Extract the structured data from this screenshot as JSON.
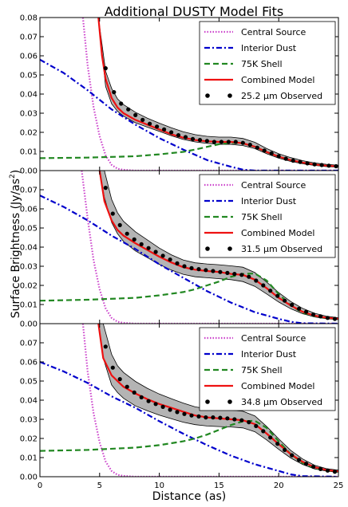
{
  "title": "Additional DUSTY Model Fits",
  "xlabel": "Distance (as)",
  "ylabel": "Surface Brightness (Jy/as",
  "ylabel_sup": "2",
  "ylabel_close": ")",
  "legend_labels": {
    "central": "Central Source",
    "interior": "Interior Dust",
    "shell": "75K Shell",
    "combined": "Combined Model"
  },
  "colors": {
    "central": "#cc44cc",
    "interior": "#0000cc",
    "shell": "#228822",
    "combined": "#ee1111",
    "observed": "#000000",
    "band": "#b4b4b4"
  },
  "chart_data": [
    {
      "type": "line",
      "legend_position": "top-right",
      "observed_label": "25.2 μm Observed",
      "xlim": [
        0,
        25
      ],
      "ylim": [
        0,
        0.08
      ],
      "x_ticks": [
        "0",
        "5",
        "10",
        "15",
        "20",
        "25"
      ],
      "y_ticks": [
        "0.00",
        "0.01",
        "0.02",
        "0.03",
        "0.04",
        "0.05",
        "0.06",
        "0.07",
        "0.08"
      ],
      "series": [
        {
          "key": "central",
          "style": "dotted",
          "x": [
            3.6,
            4.0,
            4.5,
            5.0,
            5.5,
            6.0,
            6.5,
            7.0,
            8.0,
            25.0
          ],
          "y": [
            0.08,
            0.055,
            0.033,
            0.018,
            0.008,
            0.003,
            0.001,
            0.0004,
            0.0,
            0.0
          ]
        },
        {
          "key": "interior",
          "style": "dashdot",
          "x": [
            0,
            2,
            4,
            5,
            6,
            8,
            10,
            12,
            14,
            16,
            17,
            18,
            25
          ],
          "y": [
            0.058,
            0.051,
            0.042,
            0.037,
            0.032,
            0.024,
            0.017,
            0.011,
            0.0055,
            0.002,
            0.0005,
            0.0,
            0.0
          ]
        },
        {
          "key": "shell",
          "style": "dashed",
          "x": [
            0,
            4,
            8,
            10,
            12,
            13,
            14,
            15,
            16,
            17,
            18,
            19,
            20,
            21,
            22,
            23,
            24,
            25
          ],
          "y": [
            0.0065,
            0.0068,
            0.0075,
            0.0085,
            0.0098,
            0.011,
            0.0124,
            0.0138,
            0.0145,
            0.0142,
            0.0125,
            0.0097,
            0.0073,
            0.0055,
            0.0042,
            0.0032,
            0.0026,
            0.0022
          ]
        },
        {
          "key": "combined",
          "style": "solid",
          "x": [
            4.9,
            5.2,
            5.5,
            6,
            6.5,
            7,
            8,
            9,
            10,
            11,
            12,
            13,
            14,
            15,
            16,
            17,
            18,
            19,
            20,
            21,
            22,
            23,
            24,
            25
          ],
          "y": [
            0.08,
            0.06,
            0.048,
            0.038,
            0.033,
            0.03,
            0.0265,
            0.024,
            0.0215,
            0.019,
            0.0172,
            0.016,
            0.0153,
            0.015,
            0.015,
            0.0143,
            0.0125,
            0.0097,
            0.0073,
            0.0055,
            0.0042,
            0.0032,
            0.0026,
            0.0022
          ]
        }
      ],
      "band": {
        "x": [
          4.9,
          5.5,
          6,
          6.5,
          7,
          8,
          9,
          10,
          11,
          12,
          13,
          14,
          15,
          16,
          17,
          18,
          19,
          20,
          21,
          22,
          23,
          24,
          25
        ],
        "lower": [
          0.08,
          0.044,
          0.035,
          0.031,
          0.0285,
          0.025,
          0.0227,
          0.0205,
          0.0182,
          0.0163,
          0.015,
          0.0142,
          0.0137,
          0.0137,
          0.0131,
          0.0115,
          0.0088,
          0.0065,
          0.0048,
          0.0036,
          0.0027,
          0.0021,
          0.0018
        ],
        "upper": [
          0.08,
          0.052,
          0.043,
          0.0375,
          0.0345,
          0.0305,
          0.0274,
          0.0248,
          0.0224,
          0.0203,
          0.0188,
          0.0179,
          0.0175,
          0.0175,
          0.0168,
          0.0148,
          0.0115,
          0.0088,
          0.0068,
          0.0052,
          0.004,
          0.0033,
          0.0028
        ]
      },
      "observed": {
        "x": [
          5.5,
          6.2,
          6.8,
          7.4,
          8.0,
          8.6,
          9.2,
          9.8,
          10.4,
          11.0,
          11.6,
          12.2,
          12.8,
          13.4,
          14.0,
          14.6,
          15.2,
          15.8,
          16.4,
          17.0,
          17.6,
          18.2,
          18.8,
          19.4,
          20.0,
          20.6,
          21.2,
          21.8,
          22.4,
          23.0,
          23.6,
          24.2,
          24.8
        ],
        "y": [
          0.0535,
          0.041,
          0.035,
          0.032,
          0.029,
          0.0265,
          0.0245,
          0.023,
          0.0215,
          0.02,
          0.0185,
          0.0175,
          0.0165,
          0.016,
          0.0155,
          0.015,
          0.015,
          0.015,
          0.015,
          0.0145,
          0.0135,
          0.012,
          0.0105,
          0.009,
          0.0075,
          0.0062,
          0.0052,
          0.0045,
          0.0038,
          0.0033,
          0.0029,
          0.0026,
          0.0023
        ]
      }
    },
    {
      "type": "line",
      "legend_position": "top-right",
      "observed_label": "31.5 μm Observed",
      "xlim": [
        0,
        25
      ],
      "ylim": [
        0,
        0.08
      ],
      "x_ticks": [
        "0",
        "5",
        "10",
        "15",
        "20",
        "25"
      ],
      "y_ticks": [
        "0.00",
        "0.01",
        "0.02",
        "0.03",
        "0.04",
        "0.05",
        "0.06",
        "0.07",
        ""
      ],
      "series": [
        {
          "key": "central",
          "style": "dotted",
          "x": [
            3.5,
            4.0,
            4.5,
            5.0,
            5.5,
            6.0,
            6.5,
            7.0,
            8.0,
            25.0
          ],
          "y": [
            0.08,
            0.055,
            0.033,
            0.018,
            0.008,
            0.003,
            0.001,
            0.0004,
            0.0,
            0.0
          ]
        },
        {
          "key": "interior",
          "style": "dashdot",
          "x": [
            0,
            2,
            4,
            6,
            8,
            10,
            12,
            14,
            16,
            18,
            20,
            21,
            22,
            25
          ],
          "y": [
            0.067,
            0.061,
            0.054,
            0.046,
            0.039,
            0.031,
            0.024,
            0.017,
            0.011,
            0.006,
            0.0025,
            0.001,
            0.0002,
            0.0
          ]
        },
        {
          "key": "shell",
          "style": "dashed",
          "x": [
            0,
            4,
            8,
            10,
            12,
            13,
            14,
            15,
            16,
            17,
            18,
            19,
            20,
            21,
            22,
            23,
            24,
            25
          ],
          "y": [
            0.012,
            0.0125,
            0.0135,
            0.0148,
            0.0165,
            0.018,
            0.02,
            0.022,
            0.0245,
            0.026,
            0.0262,
            0.0225,
            0.0155,
            0.0095,
            0.0058,
            0.004,
            0.003,
            0.0025
          ]
        },
        {
          "key": "combined",
          "style": "solid",
          "x": [
            5.0,
            5.4,
            6,
            6.5,
            7,
            8,
            9,
            10,
            11,
            12,
            13,
            14,
            15,
            16,
            17,
            18,
            19,
            20,
            21,
            22,
            23,
            24,
            25
          ],
          "y": [
            0.08,
            0.064,
            0.054,
            0.049,
            0.046,
            0.042,
            0.0385,
            0.035,
            0.032,
            0.0295,
            0.0282,
            0.0275,
            0.027,
            0.026,
            0.0255,
            0.023,
            0.0185,
            0.0135,
            0.0095,
            0.0062,
            0.0042,
            0.0031,
            0.0026
          ]
        },
        {
          "key": "observed-fit",
          "style": "none",
          "x": [],
          "y": []
        }
      ],
      "band": {
        "x": [
          5.0,
          5.4,
          6,
          6.5,
          7,
          8,
          9,
          10,
          11,
          12,
          13,
          14,
          15,
          16,
          17,
          18,
          19,
          20,
          21,
          22,
          23,
          24,
          25
        ],
        "lower": [
          0.08,
          0.066,
          0.053,
          0.047,
          0.043,
          0.038,
          0.0345,
          0.031,
          0.028,
          0.0258,
          0.0245,
          0.024,
          0.0235,
          0.023,
          0.022,
          0.0195,
          0.0155,
          0.0113,
          0.0078,
          0.0052,
          0.0035,
          0.0026,
          0.0021
        ],
        "upper": [
          0.08,
          0.08,
          0.065,
          0.058,
          0.0535,
          0.048,
          0.0438,
          0.0395,
          0.036,
          0.0333,
          0.0318,
          0.0312,
          0.0308,
          0.0302,
          0.0295,
          0.0267,
          0.0217,
          0.0162,
          0.0116,
          0.008,
          0.0054,
          0.0039,
          0.0031
        ]
      },
      "observed": {
        "x": [
          5.5,
          6.1,
          6.7,
          7.3,
          7.9,
          8.5,
          9.1,
          9.7,
          10.3,
          10.9,
          11.5,
          12.1,
          12.7,
          13.3,
          13.9,
          14.5,
          15.1,
          15.7,
          16.3,
          16.9,
          17.5,
          18.1,
          18.7,
          19.3,
          19.9,
          20.5,
          21.1,
          21.7,
          22.3,
          22.9,
          23.5,
          24.1,
          24.7
        ],
        "y": [
          0.071,
          0.0575,
          0.0515,
          0.047,
          0.044,
          0.0415,
          0.0395,
          0.0375,
          0.0355,
          0.0335,
          0.0315,
          0.03,
          0.029,
          0.0285,
          0.028,
          0.0275,
          0.027,
          0.0265,
          0.026,
          0.0255,
          0.0245,
          0.0225,
          0.02,
          0.0172,
          0.0145,
          0.012,
          0.0098,
          0.0078,
          0.0062,
          0.0048,
          0.0038,
          0.003,
          0.0025
        ]
      }
    },
    {
      "type": "line",
      "legend_position": "top-right",
      "observed_label": "34.8 μm Observed",
      "xlim": [
        0,
        25
      ],
      "ylim": [
        0,
        0.08
      ],
      "x_ticks": [
        "0",
        "5",
        "10",
        "15",
        "20",
        "25"
      ],
      "y_ticks": [
        "0.00",
        "0.01",
        "0.02",
        "0.03",
        "0.04",
        "0.05",
        "0.06",
        "0.07",
        ""
      ],
      "series": [
        {
          "key": "central",
          "style": "dotted",
          "x": [
            3.6,
            4.0,
            4.5,
            5.0,
            5.5,
            6.0,
            6.5,
            7.0,
            8.0,
            25.0
          ],
          "y": [
            0.08,
            0.055,
            0.033,
            0.018,
            0.008,
            0.003,
            0.001,
            0.0004,
            0.0,
            0.0
          ]
        },
        {
          "key": "interior",
          "style": "dashdot",
          "x": [
            0,
            2,
            4,
            6,
            8,
            10,
            12,
            14,
            16,
            18,
            20,
            21,
            22,
            25
          ],
          "y": [
            0.06,
            0.055,
            0.049,
            0.042,
            0.036,
            0.029,
            0.0225,
            0.0165,
            0.011,
            0.0065,
            0.003,
            0.0012,
            0.0003,
            0.0
          ]
        },
        {
          "key": "shell",
          "style": "dashed",
          "x": [
            0,
            4,
            8,
            10,
            12,
            13,
            14,
            15,
            16,
            17,
            18,
            19,
            20,
            21,
            22,
            23,
            24,
            25
          ],
          "y": [
            0.0135,
            0.014,
            0.0152,
            0.0165,
            0.0185,
            0.02,
            0.022,
            0.0245,
            0.027,
            0.029,
            0.0292,
            0.0255,
            0.0185,
            0.0118,
            0.0072,
            0.0045,
            0.0032,
            0.0026
          ]
        },
        {
          "key": "combined",
          "style": "solid",
          "x": [
            4.9,
            5.3,
            6,
            6.5,
            7,
            8,
            9,
            10,
            11,
            12,
            13,
            14,
            15,
            16,
            17,
            18,
            19,
            20,
            21,
            22,
            23,
            24,
            25
          ],
          "y": [
            0.08,
            0.062,
            0.053,
            0.05,
            0.047,
            0.0435,
            0.0405,
            0.038,
            0.036,
            0.034,
            0.032,
            0.031,
            0.0305,
            0.03,
            0.0295,
            0.0275,
            0.0225,
            0.017,
            0.0118,
            0.0078,
            0.005,
            0.0035,
            0.0028
          ]
        }
      ],
      "band": {
        "x": [
          4.9,
          5.3,
          6,
          6.5,
          7,
          8,
          9,
          10,
          11,
          12,
          13,
          14,
          15,
          16,
          17,
          18,
          19,
          20,
          21,
          22,
          23,
          24,
          25
        ],
        "lower": [
          0.08,
          0.062,
          0.048,
          0.044,
          0.041,
          0.037,
          0.0345,
          0.0322,
          0.0303,
          0.0285,
          0.0272,
          0.0265,
          0.0262,
          0.026,
          0.0255,
          0.0235,
          0.0192,
          0.0143,
          0.0098,
          0.0064,
          0.0041,
          0.0029,
          0.0023
        ],
        "upper": [
          0.08,
          0.08,
          0.064,
          0.058,
          0.0545,
          0.0498,
          0.0462,
          0.0432,
          0.0408,
          0.0385,
          0.0365,
          0.0355,
          0.035,
          0.0348,
          0.0342,
          0.0318,
          0.0262,
          0.0198,
          0.0138,
          0.0093,
          0.006,
          0.0042,
          0.0034
        ]
      },
      "observed": {
        "x": [
          5.5,
          6.1,
          6.7,
          7.3,
          7.9,
          8.5,
          9.1,
          9.7,
          10.3,
          10.9,
          11.5,
          12.1,
          12.7,
          13.3,
          13.9,
          14.5,
          15.1,
          15.7,
          16.3,
          16.9,
          17.5,
          18.1,
          18.7,
          19.3,
          19.9,
          20.5,
          21.1,
          21.7,
          22.3,
          22.9,
          23.5,
          24.1,
          24.7
        ],
        "y": [
          0.068,
          0.057,
          0.051,
          0.047,
          0.044,
          0.0415,
          0.0395,
          0.038,
          0.0365,
          0.035,
          0.0338,
          0.0328,
          0.032,
          0.0315,
          0.031,
          0.031,
          0.0308,
          0.0305,
          0.03,
          0.0295,
          0.0285,
          0.0265,
          0.0238,
          0.0205,
          0.0172,
          0.014,
          0.0112,
          0.0088,
          0.0068,
          0.0052,
          0.004,
          0.0032,
          0.0026
        ]
      }
    }
  ]
}
